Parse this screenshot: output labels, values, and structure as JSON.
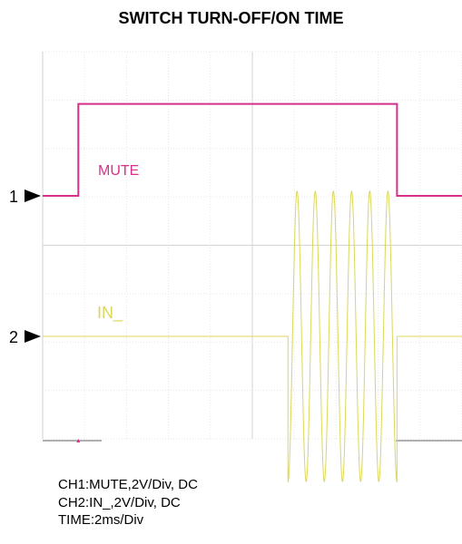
{
  "chart_data": {
    "type": "line",
    "title": "SWITCH TURN-OFF/ON TIME",
    "x_unit": "ms",
    "x_range": [
      -0.1,
      19.9
    ],
    "divisions": {
      "horizontal": 10,
      "vertical": 8
    },
    "series": [
      {
        "name": "MUTE",
        "channel": "1",
        "color": "#d6308a",
        "volts_per_div": 2,
        "points": [
          [
            -0.1,
            0
          ],
          [
            1.6,
            0
          ],
          [
            1.6,
            3.8
          ],
          [
            16.8,
            3.8
          ],
          [
            16.8,
            0
          ],
          [
            19.9,
            0
          ]
        ]
      },
      {
        "name": "IN_",
        "channel": "2",
        "color": "#dcd75a",
        "volts_per_div": 2,
        "quiet_until_ms": 11.6,
        "burst_start_ms": 11.6,
        "burst_end_ms": 16.8,
        "burst_cycles": 6,
        "burst_amplitude_v": 6.0
      }
    ]
  },
  "footer": {
    "ch1": "CH1:MUTE,2V/Div, DC",
    "ch2": "CH2:IN_,2V/Div, DC",
    "time": "TIME:2ms/Div"
  }
}
